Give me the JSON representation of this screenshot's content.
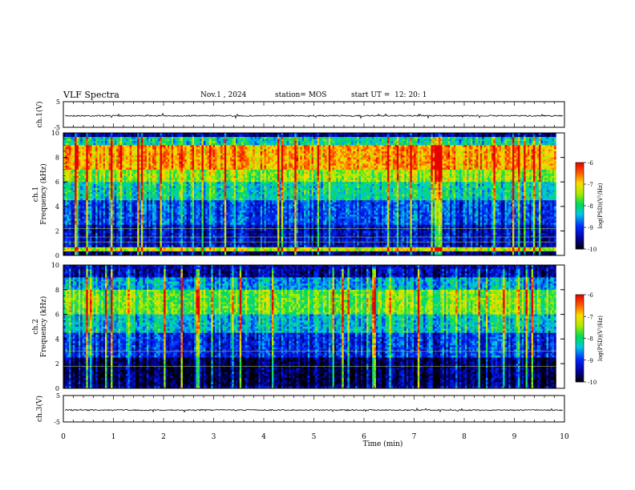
{
  "header": {
    "title": "VLF Spectra",
    "date": "Nov.1 , 2024",
    "station": "station= MOS",
    "start": "start UT =  12: 20: 1"
  },
  "chart_data": [
    {
      "type": "line",
      "panel": "top-waveform",
      "ylabel": "ch.1(V)",
      "yticks": [
        "5",
        "-5"
      ],
      "ylim": [
        -5,
        5
      ],
      "xlim": [
        0,
        10
      ],
      "level": -0.5
    },
    {
      "type": "heatmap",
      "panel": "spectrogram-ch1",
      "ylabel_channel": "ch.1",
      "ylabel": "Frequency (kHz)",
      "yticks": [
        "0",
        "2",
        "4",
        "6",
        "8",
        "10"
      ],
      "ylim": [
        0,
        10
      ],
      "xlim": [
        0,
        9.83
      ],
      "colorbar": {
        "label": "log(PSD)(V²/Hz)",
        "ticks": [
          "-6",
          "-7",
          "-8",
          "-9",
          "-10"
        ],
        "range": [
          -10,
          -6
        ]
      },
      "bands": [
        {
          "f": [
            0.0,
            0.3
          ],
          "level": -9.6
        },
        {
          "f": [
            0.3,
            0.6
          ],
          "level": -7.3
        },
        {
          "f": [
            0.6,
            2.5
          ],
          "level": -9.3
        },
        {
          "f": [
            2.5,
            4.5
          ],
          "level": -8.9
        },
        {
          "f": [
            4.5,
            6.0
          ],
          "level": -8.2
        },
        {
          "f": [
            6.0,
            7.0
          ],
          "level": -7.5
        },
        {
          "f": [
            7.0,
            9.0
          ],
          "level": -6.8
        },
        {
          "f": [
            9.0,
            9.6
          ],
          "level": -8.2
        },
        {
          "f": [
            9.6,
            10.0
          ],
          "level": -9.5
        }
      ],
      "lines_khz": [
        1.1,
        1.5,
        2.2
      ]
    },
    {
      "type": "heatmap",
      "panel": "spectrogram-ch2",
      "ylabel_channel": "ch.2",
      "ylabel": "Frequency (kHz)",
      "yticks": [
        "0",
        "2",
        "4",
        "6",
        "8",
        "10"
      ],
      "ylim": [
        0,
        10
      ],
      "xlim": [
        0,
        9.83
      ],
      "colorbar": {
        "label": "log(PSD)(V²/Hz)",
        "ticks": [
          "-6",
          "-7",
          "-8",
          "-9",
          "-10"
        ],
        "range": [
          -10,
          -6
        ]
      },
      "bands": [
        {
          "f": [
            0.0,
            0.2
          ],
          "level": -9.4
        },
        {
          "f": [
            0.2,
            2.5
          ],
          "level": -9.7
        },
        {
          "f": [
            2.5,
            4.5
          ],
          "level": -9.0
        },
        {
          "f": [
            4.5,
            6.0
          ],
          "level": -8.3
        },
        {
          "f": [
            6.0,
            8.0
          ],
          "level": -7.6
        },
        {
          "f": [
            8.0,
            9.0
          ],
          "level": -8.5
        },
        {
          "f": [
            9.0,
            10.0
          ],
          "level": -9.4
        }
      ],
      "lines_khz": [
        1.8,
        3.0
      ]
    },
    {
      "type": "line",
      "panel": "bottom-waveform",
      "ylabel": "ch.3(V)",
      "yticks": [
        "5",
        "-5"
      ],
      "ylim": [
        -5,
        5
      ],
      "xlim": [
        0,
        10
      ],
      "level": -0.5
    }
  ],
  "xaxis": {
    "label": "Time (min)",
    "ticks": [
      "0",
      "1",
      "2",
      "3",
      "4",
      "5",
      "6",
      "7",
      "8",
      "9",
      "10"
    ]
  }
}
